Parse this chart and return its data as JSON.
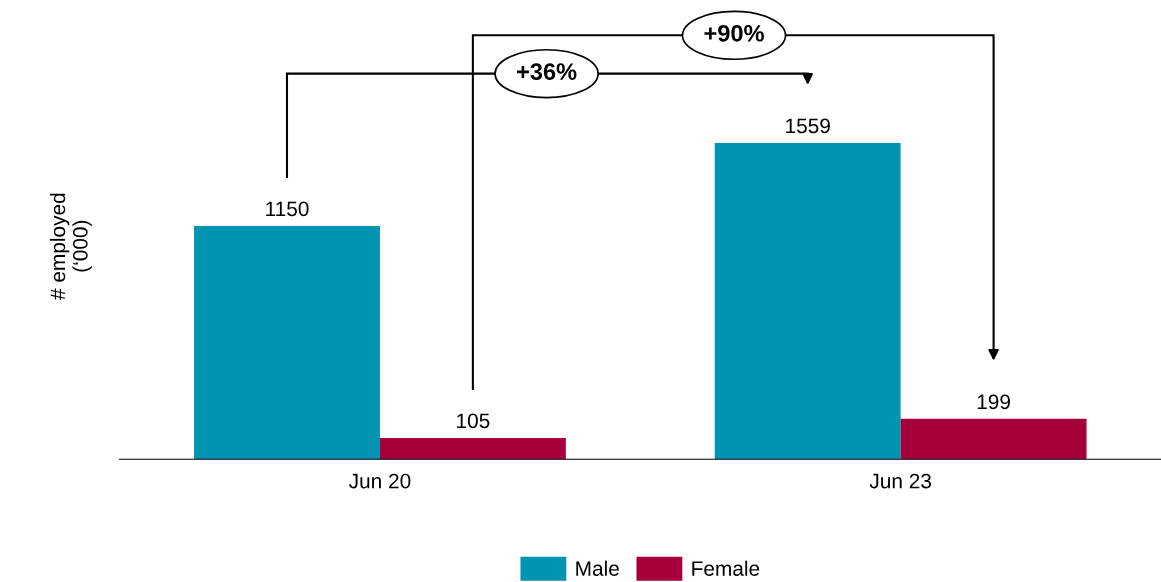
{
  "chart_data": {
    "type": "bar",
    "ylabel": "# employed\n(‘000)",
    "categories": [
      "Jun 20",
      "Jun 23"
    ],
    "series": [
      {
        "name": "Male",
        "color": "#0093b2",
        "values": [
          1150,
          1559
        ]
      },
      {
        "name": "Female",
        "color": "#a6003c",
        "values": [
          105,
          199
        ]
      }
    ],
    "ylim": [
      0,
      2100
    ],
    "tick_labels": "x",
    "data_labels": true,
    "legend": "bottom",
    "grid": false,
    "annotations": [
      "+36%",
      "+90%"
    ]
  }
}
